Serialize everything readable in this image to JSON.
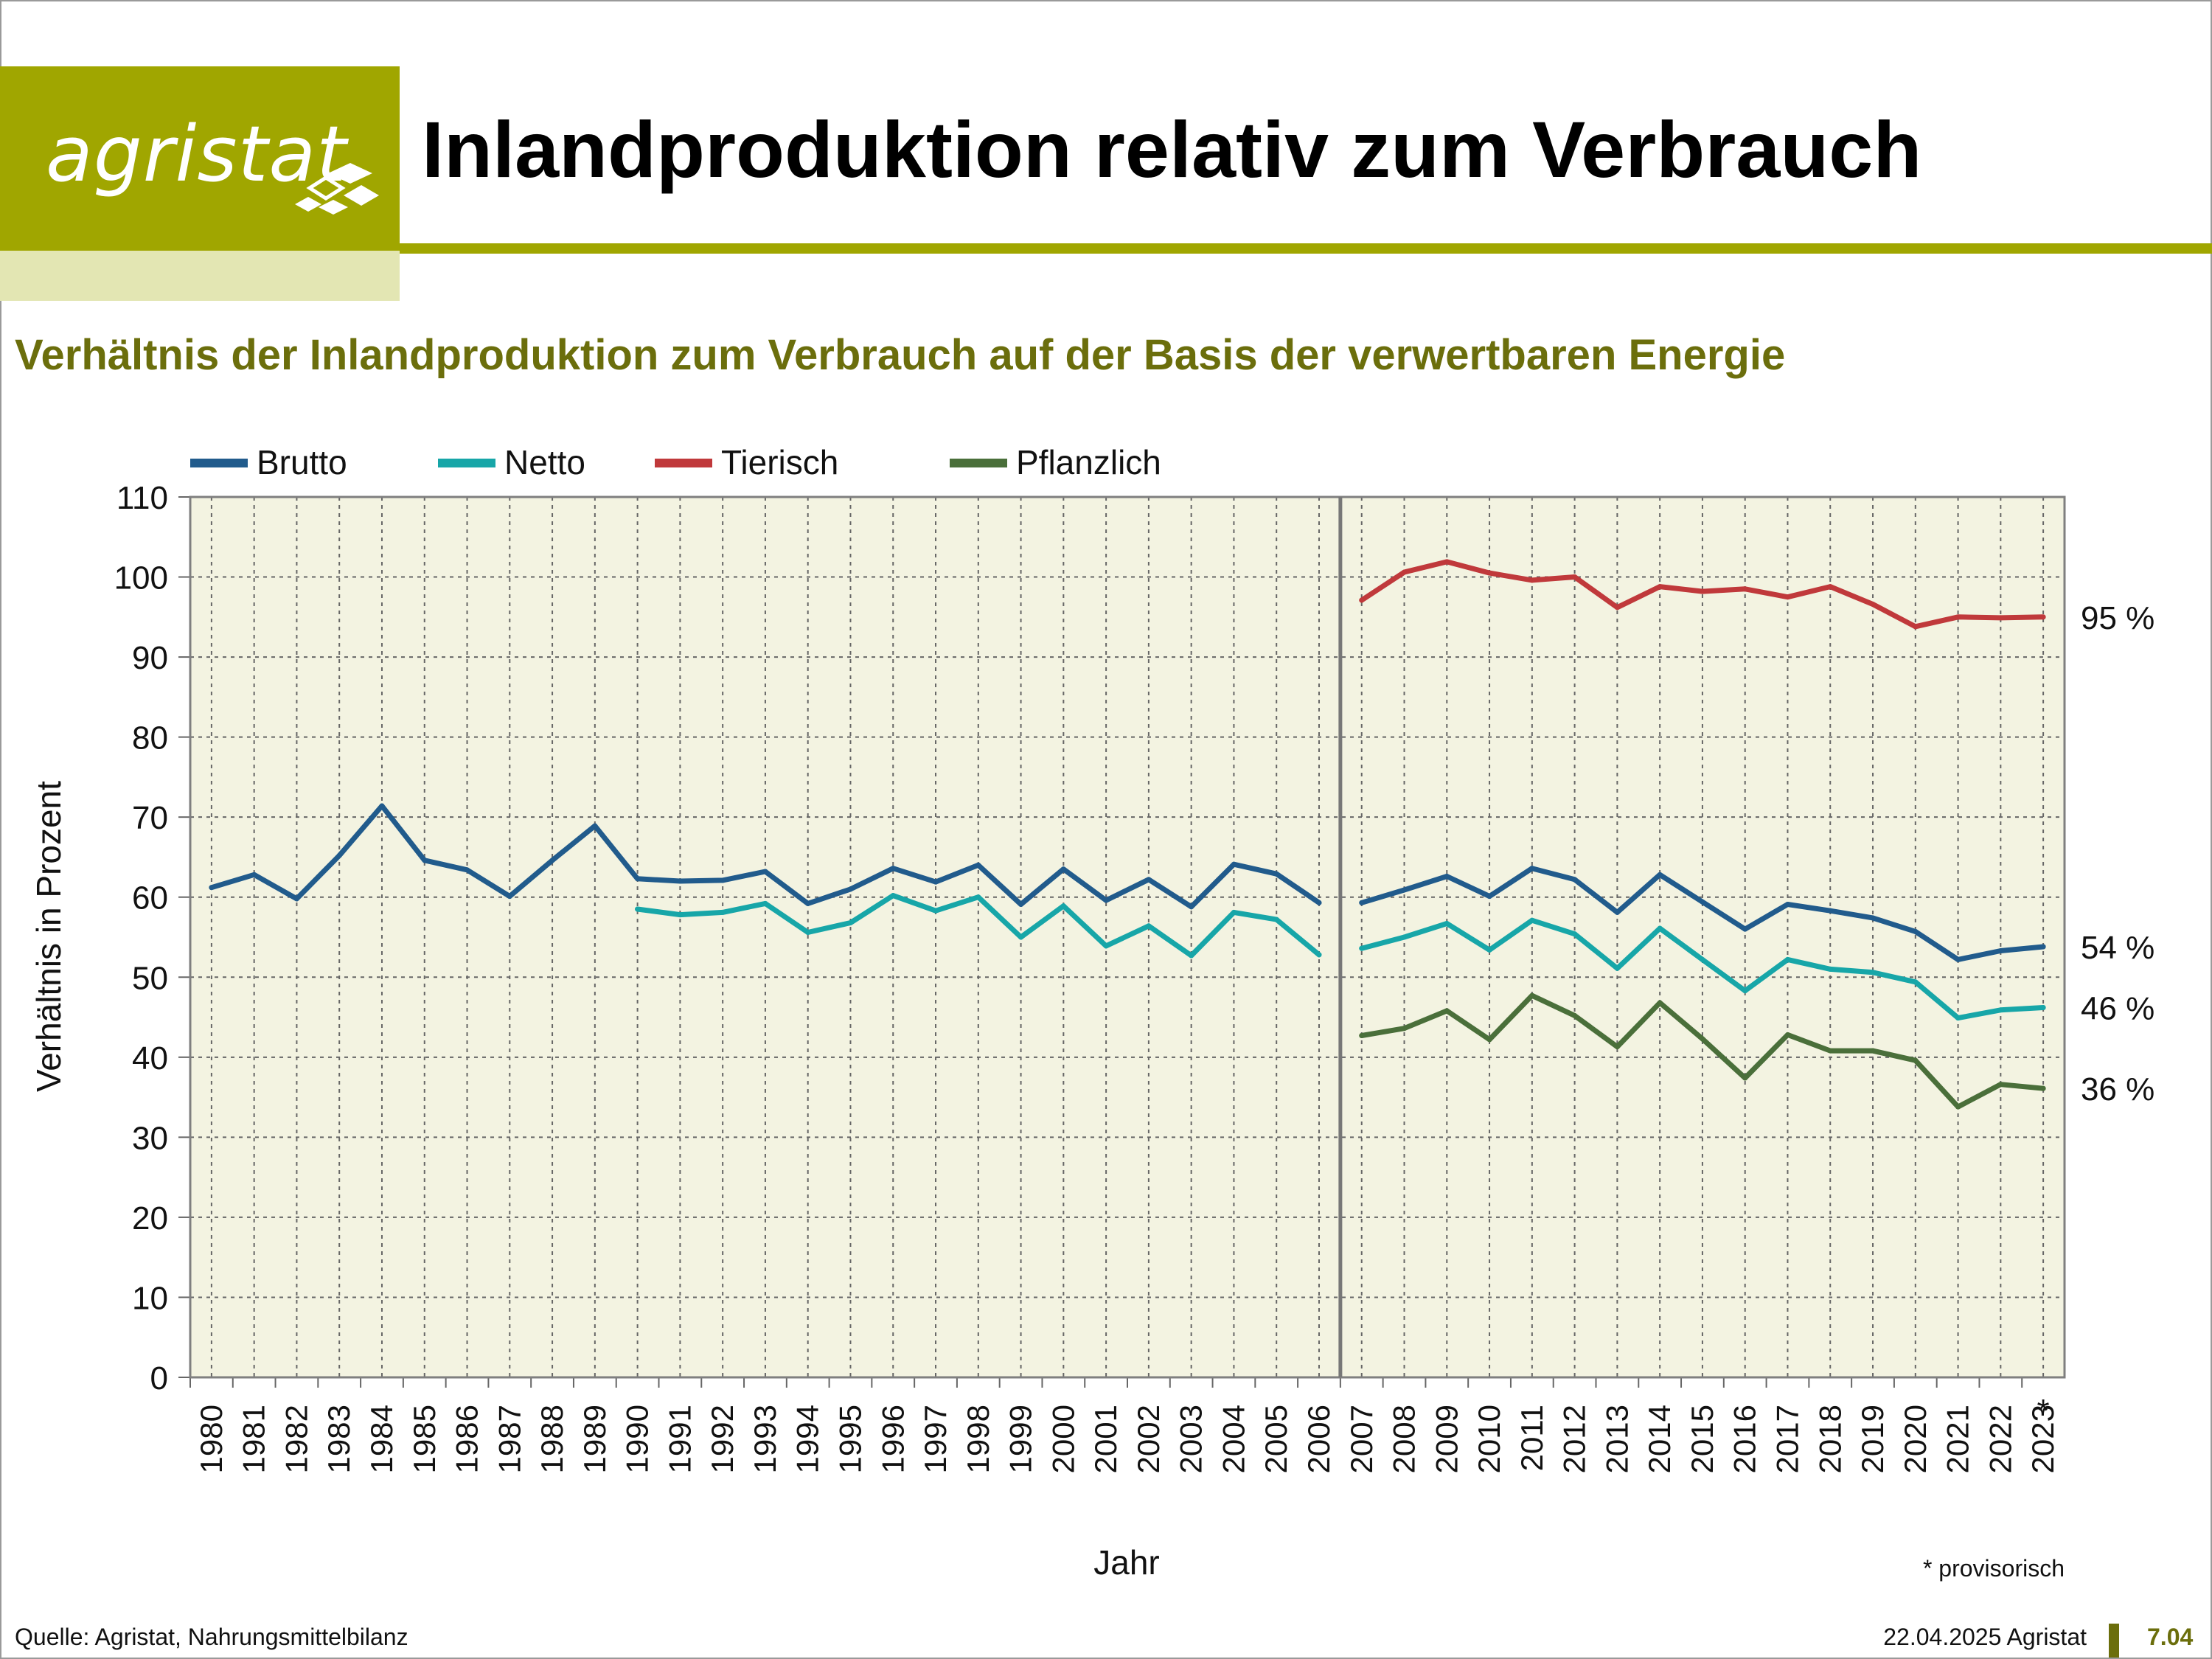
{
  "header": {
    "logo_text": "agristat",
    "title": "Inlandproduktion relativ zum Verbrauch",
    "subtitle": "Verhältnis der Inlandproduktion zum Verbrauch auf der Basis der verwertbaren Energie"
  },
  "footer": {
    "source": "Quelle: Agristat, Nahrungsmittelbilanz",
    "date": "22.04.2025 Agristat",
    "page": "7.04"
  },
  "colors": {
    "brand": "#a0a600",
    "subtitle": "#6b6e0c",
    "plot_bg": "#f3f3e1",
    "Brutto": "#215b8c",
    "Netto": "#17a6a8",
    "Tierisch": "#c0393b",
    "Pflanzlich": "#4a6f3a"
  },
  "chart_data": {
    "type": "line",
    "xlabel": "Jahr",
    "ylabel": "Verhältnis in Prozent",
    "ylim": [
      0,
      110
    ],
    "yticks": [
      0,
      10,
      20,
      30,
      40,
      50,
      60,
      70,
      80,
      90,
      100,
      110
    ],
    "grid": true,
    "legend_position": "top-left",
    "categories": [
      "1980",
      "1981",
      "1982",
      "1983",
      "1984",
      "1985",
      "1986",
      "1987",
      "1988",
      "1989",
      "1990",
      "1991",
      "1992",
      "1993",
      "1994",
      "1995",
      "1996",
      "1997",
      "1998",
      "1999",
      "2000",
      "2001",
      "2002",
      "2003",
      "2004",
      "2005",
      "2006",
      "2007",
      "2008",
      "2009",
      "2010",
      "2011",
      "2012",
      "2013",
      "2014",
      "2015",
      "2016",
      "2017",
      "2018",
      "2019",
      "2020",
      "2021",
      "2022",
      "2023"
    ],
    "provisional_marker": "*",
    "provisional_note": "* provisorisch",
    "break_between": [
      "2006",
      "2007"
    ],
    "series": [
      {
        "name": "Brutto",
        "values": [
          61.2,
          62.8,
          59.8,
          65.2,
          71.4,
          64.6,
          63.4,
          60.1,
          64.6,
          68.9,
          62.3,
          62.0,
          62.1,
          63.2,
          59.2,
          61.0,
          63.6,
          61.9,
          64.0,
          59.1,
          63.5,
          59.6,
          62.2,
          58.8,
          64.1,
          62.9,
          59.3,
          59.3,
          60.9,
          62.6,
          60.1,
          63.6,
          62.2,
          58.1,
          62.8,
          59.4,
          56.0,
          59.1,
          58.3,
          57.4,
          55.7,
          52.2,
          53.3,
          53.8
        ],
        "end_label": "54 %"
      },
      {
        "name": "Netto",
        "values": [
          null,
          null,
          null,
          null,
          null,
          null,
          null,
          null,
          null,
          null,
          58.5,
          57.8,
          58.1,
          59.2,
          55.6,
          56.8,
          60.2,
          58.3,
          60.0,
          55.0,
          58.9,
          53.9,
          56.4,
          52.7,
          58.1,
          57.2,
          52.8,
          53.6,
          55.0,
          56.7,
          53.4,
          57.1,
          55.4,
          51.1,
          56.1,
          52.2,
          48.3,
          52.2,
          51.0,
          50.6,
          49.4,
          44.9,
          45.9,
          46.2
        ],
        "end_label": "46 %"
      },
      {
        "name": "Tierisch",
        "values": [
          null,
          null,
          null,
          null,
          null,
          null,
          null,
          null,
          null,
          null,
          null,
          null,
          null,
          null,
          null,
          null,
          null,
          null,
          null,
          null,
          null,
          null,
          null,
          null,
          null,
          null,
          null,
          97.1,
          100.6,
          101.9,
          100.5,
          99.6,
          100.0,
          96.2,
          98.8,
          98.2,
          98.5,
          97.5,
          98.8,
          96.6,
          93.8,
          95.0,
          94.9,
          95.0
        ],
        "end_label": "95 %"
      },
      {
        "name": "Pflanzlich",
        "values": [
          null,
          null,
          null,
          null,
          null,
          null,
          null,
          null,
          null,
          null,
          null,
          null,
          null,
          null,
          null,
          null,
          null,
          null,
          null,
          null,
          null,
          null,
          null,
          null,
          null,
          null,
          null,
          42.7,
          43.6,
          45.8,
          42.2,
          47.7,
          45.2,
          41.3,
          46.8,
          42.3,
          37.4,
          42.8,
          40.8,
          40.8,
          39.6,
          33.8,
          36.6,
          36.1
        ],
        "end_label": "36 %"
      }
    ]
  }
}
